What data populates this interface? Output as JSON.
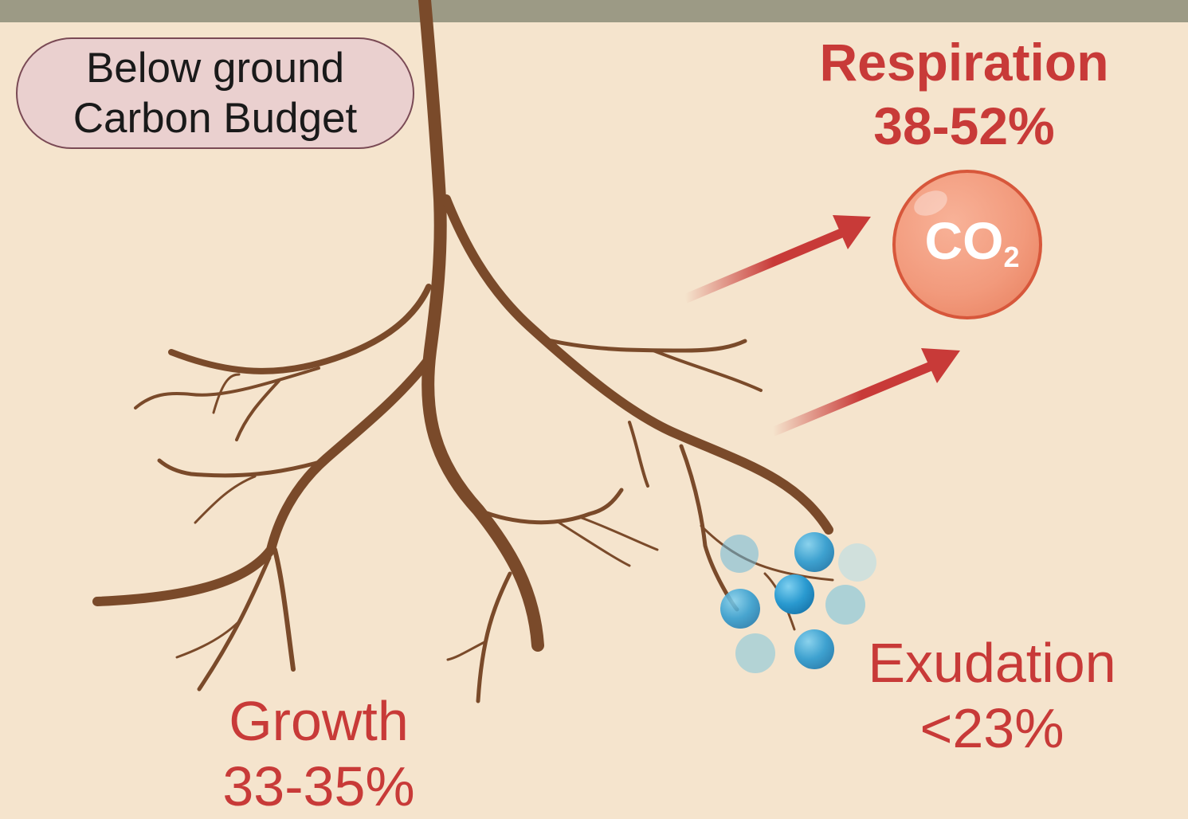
{
  "title": {
    "line1": "Below ground",
    "line2": "Carbon Budget"
  },
  "respiration": {
    "label": "Respiration",
    "value": "38-52%"
  },
  "co2": {
    "main": "CO",
    "sub": "2"
  },
  "growth": {
    "label": "Growth",
    "value": "33-35%"
  },
  "exudation": {
    "label": "Exudation",
    "value": "<23%"
  },
  "colors": {
    "background": "#f5e4cd",
    "ground_line": "#9c9a85",
    "root": "#7a4a2a",
    "accent_red": "#c83a38",
    "co2_bubble": "#f29a7c",
    "exudate_blue": "#2a96cc",
    "title_box": "#ead0cf"
  },
  "icons": [
    "root-system-icon",
    "co2-bubble-icon",
    "exudate-molecule-icon",
    "arrow-icon"
  ]
}
